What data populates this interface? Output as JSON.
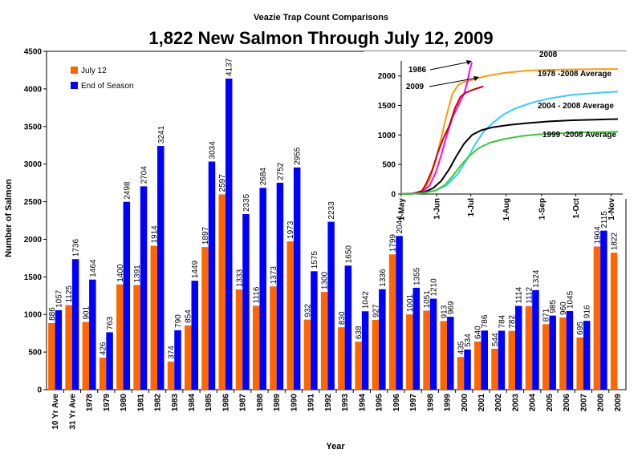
{
  "chart_data": [
    {
      "type": "bar",
      "suptitle": "Veazie Trap Count Comparisons",
      "title": "1,822 New Salmon Through July 12, 2009",
      "xlabel": "Year",
      "ylabel": "Number of Salmon",
      "ylim": [
        0,
        4500
      ],
      "yticks": [
        0,
        500,
        1000,
        1500,
        2000,
        2500,
        3000,
        3500,
        4000,
        4500
      ],
      "grid": false,
      "legend_position": "top-left",
      "categories": [
        "10 Yr Ave",
        "31 Yr Ave",
        "1978",
        "1979",
        "1980",
        "1981",
        "1982",
        "1983",
        "1984",
        "1985",
        "1986",
        "1987",
        "1988",
        "1989",
        "1990",
        "1991",
        "1992",
        "1993",
        "1994",
        "1995",
        "1996",
        "1997",
        "1998",
        "1999",
        "2000",
        "2001",
        "2002",
        "2003",
        "2004",
        "2005",
        "2006",
        "2007",
        "2008",
        "2009"
      ],
      "series": [
        {
          "name": "July 12",
          "color": "#ff6600",
          "values": [
            886,
            1125,
            901,
            426,
            1400,
            1391,
            1914,
            374,
            854,
            1897,
            2597,
            1333,
            1116,
            1373,
            1973,
            932,
            1300,
            830,
            638,
            927,
            1799,
            1001,
            1051,
            913,
            435,
            640,
            544,
            782,
            1112,
            871,
            960,
            695,
            1904,
            1822
          ]
        },
        {
          "name": "End of Season",
          "color": "#0000ff",
          "values": [
            1057,
            1736,
            1464,
            763,
            2498,
            2704,
            3241,
            790,
            1449,
            3034,
            4137,
            2335,
            2684,
            2752,
            2955,
            1575,
            2233,
            1650,
            1042,
            1336,
            2044,
            1355,
            1210,
            969,
            534,
            786,
            784,
            1114,
            1324,
            985,
            1045,
            916,
            2115,
            null
          ]
        }
      ]
    },
    {
      "type": "line",
      "x_ticks": [
        "1-May",
        "1-Jun",
        "1-Jul",
        "1-Aug",
        "1-Sep",
        "1-Oct",
        "1-Nov"
      ],
      "ylim": [
        0,
        2200
      ],
      "yticks": [
        0,
        500,
        1000,
        1500,
        2000
      ],
      "grid": false,
      "x_unit": "days since 1-May",
      "series": [
        {
          "name": "2008",
          "color": "#ff9900",
          "x": [
            0,
            8,
            15,
            20,
            25,
            30,
            35,
            40,
            45,
            50,
            55,
            60,
            65,
            75,
            90,
            110,
            130,
            150,
            170,
            190
          ],
          "values": [
            0,
            5,
            20,
            80,
            250,
            550,
            950,
            1350,
            1700,
            1850,
            1900,
            1920,
            1950,
            2000,
            2050,
            2090,
            2105,
            2110,
            2115,
            2115
          ]
        },
        {
          "name": "1986",
          "color": "#ff00ff",
          "x": [
            0,
            10,
            20,
            25,
            30,
            35,
            40,
            45,
            50,
            55,
            58,
            60,
            62
          ],
          "values": [
            0,
            10,
            60,
            150,
            350,
            650,
            1000,
            1300,
            1500,
            1700,
            1900,
            2100,
            2230
          ]
        },
        {
          "name": "2009",
          "color": "#cc0000",
          "x": [
            0,
            10,
            18,
            22,
            27,
            32,
            37,
            42,
            47,
            52,
            57,
            62,
            68,
            72
          ],
          "values": [
            0,
            5,
            50,
            180,
            400,
            700,
            950,
            1150,
            1450,
            1650,
            1720,
            1760,
            1800,
            1822
          ]
        },
        {
          "name": "1978 -2008 Average",
          "color": "#33ccff",
          "x": [
            0,
            10,
            20,
            30,
            40,
            50,
            58,
            65,
            72,
            80,
            90,
            100,
            115,
            130,
            150,
            170,
            190
          ],
          "values": [
            0,
            5,
            20,
            60,
            150,
            350,
            600,
            850,
            1050,
            1200,
            1350,
            1450,
            1550,
            1620,
            1680,
            1710,
            1736
          ]
        },
        {
          "name": "2004 - 2008 Average",
          "color": "#000000",
          "x": [
            0,
            10,
            20,
            28,
            35,
            42,
            48,
            55,
            62,
            70,
            80,
            95,
            110,
            130,
            150,
            170,
            190
          ],
          "values": [
            0,
            5,
            30,
            100,
            220,
            420,
            630,
            850,
            1000,
            1080,
            1130,
            1170,
            1200,
            1230,
            1250,
            1260,
            1270
          ]
        },
        {
          "name": "1999 -2008 Average",
          "color": "#33cc33",
          "x": [
            0,
            10,
            20,
            30,
            38,
            45,
            52,
            60,
            68,
            78,
            90,
            105,
            120,
            140,
            160,
            180,
            190
          ],
          "values": [
            0,
            5,
            20,
            60,
            150,
            300,
            480,
            650,
            780,
            870,
            930,
            980,
            1010,
            1030,
            1045,
            1050,
            1057
          ]
        }
      ]
    }
  ]
}
